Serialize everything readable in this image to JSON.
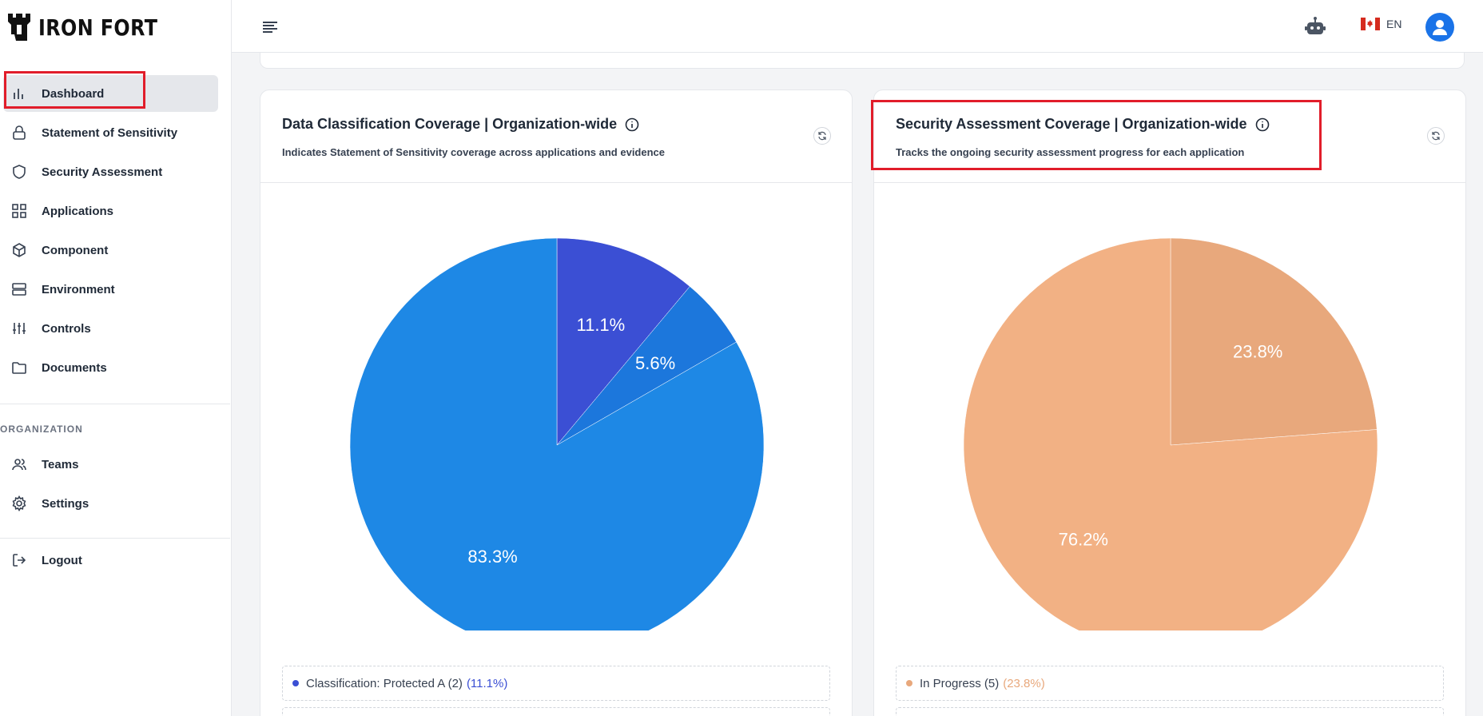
{
  "brand": {
    "name": "IRON FORT"
  },
  "sidebar": {
    "items": [
      {
        "label": "Dashboard",
        "icon": "bar-chart-icon",
        "active": true
      },
      {
        "label": "Statement of Sensitivity",
        "icon": "lock-icon"
      },
      {
        "label": "Security Assessment",
        "icon": "shield-icon"
      },
      {
        "label": "Applications",
        "icon": "grid-icon"
      },
      {
        "label": "Component",
        "icon": "cube-icon"
      },
      {
        "label": "Environment",
        "icon": "server-icon"
      },
      {
        "label": "Controls",
        "icon": "sliders-icon"
      },
      {
        "label": "Documents",
        "icon": "folder-icon"
      }
    ],
    "section_label": "ORGANIZATION",
    "org_items": [
      {
        "label": "Teams",
        "icon": "users-icon"
      },
      {
        "label": "Settings",
        "icon": "gear-icon"
      }
    ],
    "logout_label": "Logout"
  },
  "topbar": {
    "lang_label": "EN",
    "flag": "canada-flag-icon"
  },
  "cards": [
    {
      "title": "Data Classification Coverage | Organization-wide",
      "subtitle": "Indicates Statement of Sensitivity coverage across applications and evidence",
      "legend": {
        "label": "Classification: Protected A (2)",
        "pct": "(11.1%)",
        "color": "#3b4fd4"
      }
    },
    {
      "title": "Security Assessment Coverage | Organization-wide",
      "subtitle": "Tracks the ongoing security assessment progress for each application",
      "legend": {
        "label": "In Progress (5)",
        "pct": "(23.8%)",
        "color": "#e8a87c"
      }
    }
  ],
  "chart_data": [
    {
      "type": "pie",
      "slices": [
        {
          "value": 11.1,
          "label": "11.1%",
          "color": "#3b4fd4"
        },
        {
          "value": 5.6,
          "label": "5.6%",
          "color": "#1c77dc"
        },
        {
          "value": 83.3,
          "label": "83.3%",
          "color": "#1e88e5"
        }
      ]
    },
    {
      "type": "pie",
      "slices": [
        {
          "value": 23.8,
          "label": "23.8%",
          "color": "#e8a87c"
        },
        {
          "value": 76.2,
          "label": "76.2%",
          "color": "#f2b184"
        }
      ]
    }
  ]
}
